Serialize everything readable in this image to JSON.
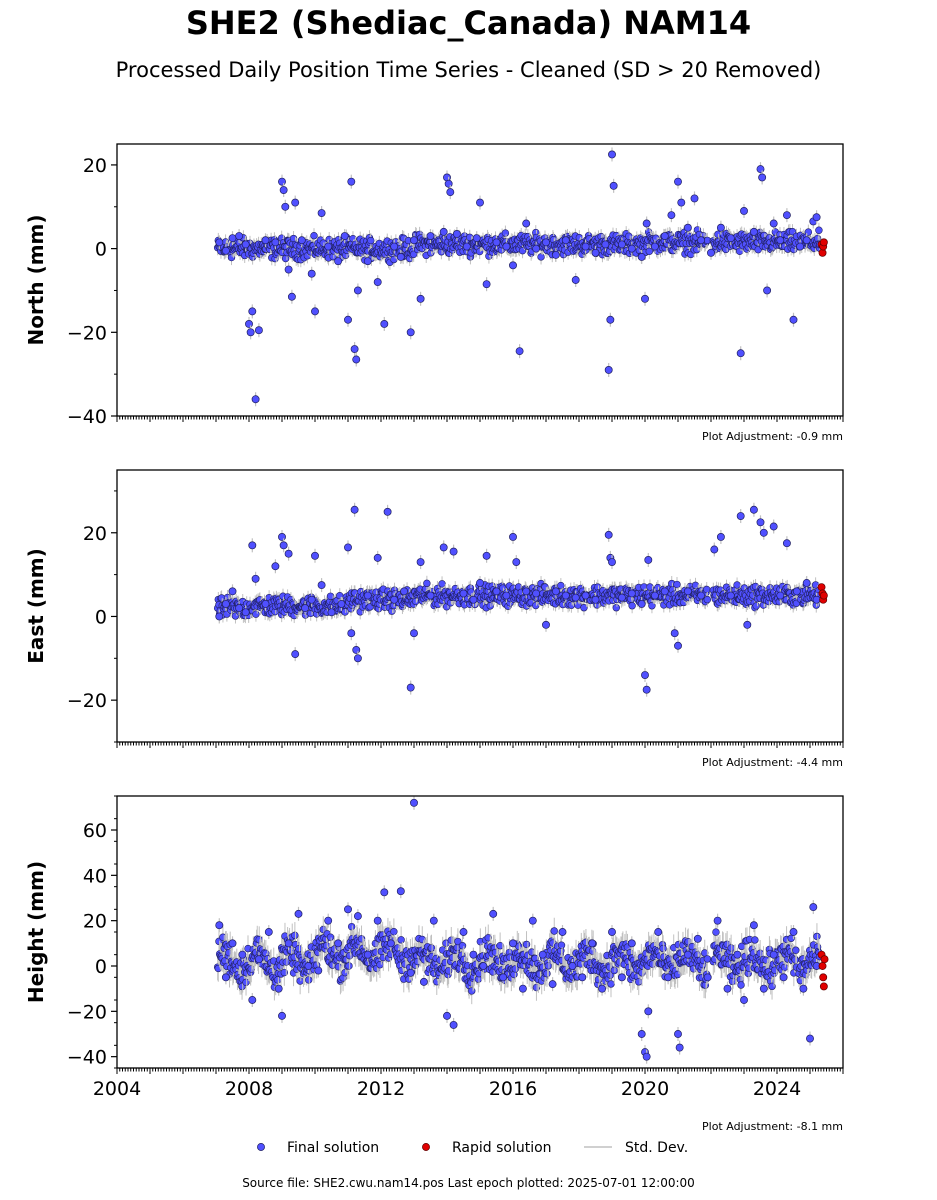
{
  "title": "SHE2 (Shediac_Canada) NAM14",
  "subtitle": "Processed Daily Position Time Series - Cleaned (SD > 20 Removed)",
  "footer": "Source file: SHE2.cwu.nam14.pos  Last epoch plotted: 2025-07-01 12:00:00",
  "legend": {
    "final": "Final solution",
    "rapid": "Rapid solution",
    "std": "Std. Dev."
  },
  "colors": {
    "final": "#5050ff",
    "rapid": "#e00000",
    "std": "#c0c0c0",
    "edge": "#202060"
  },
  "chart_data": [
    {
      "type": "scatter",
      "ylabel": "North (mm)",
      "adjustment": "Plot Adjustment: -0.9 mm",
      "xlim": [
        2004,
        2026
      ],
      "ylim": [
        -40,
        25
      ],
      "yticks": [
        20,
        0,
        -20,
        -40
      ],
      "ytick_labels": [
        "20",
        "0",
        "−20",
        "−40"
      ],
      "series_final": [
        [
          2007.1,
          1.5
        ],
        [
          2007.3,
          -0.5
        ],
        [
          2007.5,
          2.5
        ],
        [
          2007.7,
          3.0
        ],
        [
          2007.9,
          1.0
        ],
        [
          2008.0,
          -18.0
        ],
        [
          2008.05,
          -20.0
        ],
        [
          2008.1,
          -15.0
        ],
        [
          2008.2,
          -36.0
        ],
        [
          2008.3,
          -19.5
        ],
        [
          2008.5,
          2.0
        ],
        [
          2008.8,
          1.5
        ],
        [
          2009.0,
          16.0
        ],
        [
          2009.05,
          14.0
        ],
        [
          2009.1,
          10.0
        ],
        [
          2009.2,
          -5.0
        ],
        [
          2009.3,
          -11.5
        ],
        [
          2009.4,
          11.0
        ],
        [
          2009.6,
          2.0
        ],
        [
          2009.9,
          -6.0
        ],
        [
          2010.0,
          -15.0
        ],
        [
          2010.2,
          8.5
        ],
        [
          2010.4,
          0.5
        ],
        [
          2010.7,
          -3.0
        ],
        [
          2010.9,
          3.0
        ],
        [
          2011.0,
          -17.0
        ],
        [
          2011.1,
          16.0
        ],
        [
          2011.2,
          -24.0
        ],
        [
          2011.25,
          -26.5
        ],
        [
          2011.3,
          -10.0
        ],
        [
          2011.6,
          -3.0
        ],
        [
          2011.9,
          -8.0
        ],
        [
          2012.1,
          -18.0
        ],
        [
          2012.4,
          0.5
        ],
        [
          2012.6,
          -2.0
        ],
        [
          2012.9,
          -20.0
        ],
        [
          2013.0,
          2.0
        ],
        [
          2013.2,
          -12.0
        ],
        [
          2013.5,
          3.0
        ],
        [
          2013.9,
          4.0
        ],
        [
          2014.0,
          17.0
        ],
        [
          2014.05,
          15.5
        ],
        [
          2014.1,
          13.5
        ],
        [
          2014.3,
          3.5
        ],
        [
          2014.6,
          0.5
        ],
        [
          2014.9,
          2.5
        ],
        [
          2015.0,
          11.0
        ],
        [
          2015.2,
          -8.5
        ],
        [
          2015.5,
          1.5
        ],
        [
          2015.8,
          0.5
        ],
        [
          2016.0,
          -4.0
        ],
        [
          2016.2,
          -24.5
        ],
        [
          2016.4,
          6.0
        ],
        [
          2016.7,
          0.0
        ],
        [
          2017.0,
          1.5
        ],
        [
          2017.3,
          -1.5
        ],
        [
          2017.6,
          2.0
        ],
        [
          2017.9,
          -7.5
        ],
        [
          2018.2,
          0.5
        ],
        [
          2018.5,
          -1.0
        ],
        [
          2018.8,
          1.0
        ],
        [
          2018.9,
          -29.0
        ],
        [
          2018.95,
          -17.0
        ],
        [
          2019.0,
          22.5
        ],
        [
          2019.05,
          15.0
        ],
        [
          2019.3,
          1.0
        ],
        [
          2019.6,
          0.0
        ],
        [
          2019.9,
          -2.0
        ],
        [
          2020.0,
          -12.0
        ],
        [
          2020.05,
          6.0
        ],
        [
          2020.3,
          0.5
        ],
        [
          2020.6,
          3.0
        ],
        [
          2020.8,
          8.0
        ],
        [
          2021.0,
          16.0
        ],
        [
          2021.1,
          11.0
        ],
        [
          2021.3,
          5.0
        ],
        [
          2021.5,
          12.0
        ],
        [
          2021.7,
          2.0
        ],
        [
          2022.0,
          -1.0
        ],
        [
          2022.3,
          5.0
        ],
        [
          2022.6,
          2.5
        ],
        [
          2022.9,
          -25.0
        ],
        [
          2023.0,
          9.0
        ],
        [
          2023.3,
          4.0
        ],
        [
          2023.5,
          19.0
        ],
        [
          2023.55,
          17.0
        ],
        [
          2023.7,
          -10.0
        ],
        [
          2023.9,
          6.0
        ],
        [
          2024.1,
          2.0
        ],
        [
          2024.3,
          8.0
        ],
        [
          2024.5,
          -17.0
        ],
        [
          2024.7,
          0.5
        ],
        [
          2024.9,
          2.0
        ],
        [
          2025.1,
          6.5
        ],
        [
          2025.2,
          7.5
        ],
        [
          2025.3,
          1.0
        ]
      ],
      "series_rapid": [
        [
          2025.35,
          1.0
        ],
        [
          2025.38,
          -1.0
        ],
        [
          2025.4,
          0.5
        ],
        [
          2025.42,
          1.5
        ]
      ]
    },
    {
      "type": "scatter",
      "ylabel": "East (mm)",
      "adjustment": "Plot Adjustment: -4.4 mm",
      "xlim": [
        2004,
        2026
      ],
      "ylim": [
        -30,
        35
      ],
      "yticks": [
        20,
        0,
        -20
      ],
      "ytick_labels": [
        "20",
        "0",
        "−20"
      ],
      "series_final": [
        [
          2007.1,
          0.0
        ],
        [
          2007.3,
          3.0
        ],
        [
          2007.5,
          6.0
        ],
        [
          2007.7,
          2.0
        ],
        [
          2007.9,
          1.0
        ],
        [
          2008.1,
          17.0
        ],
        [
          2008.2,
          9.0
        ],
        [
          2008.5,
          3.0
        ],
        [
          2008.8,
          12.0
        ],
        [
          2009.0,
          19.0
        ],
        [
          2009.05,
          17.0
        ],
        [
          2009.2,
          15.0
        ],
        [
          2009.4,
          -9.0
        ],
        [
          2009.7,
          2.0
        ],
        [
          2009.9,
          4.0
        ],
        [
          2010.0,
          14.5
        ],
        [
          2010.2,
          7.5
        ],
        [
          2010.5,
          1.0
        ],
        [
          2010.8,
          3.0
        ],
        [
          2011.0,
          16.5
        ],
        [
          2011.1,
          -4.0
        ],
        [
          2011.2,
          25.5
        ],
        [
          2011.25,
          -8.0
        ],
        [
          2011.3,
          -10.0
        ],
        [
          2011.6,
          5.0
        ],
        [
          2011.9,
          14.0
        ],
        [
          2012.2,
          25.0
        ],
        [
          2012.4,
          4.0
        ],
        [
          2012.7,
          6.0
        ],
        [
          2012.9,
          -17.0
        ],
        [
          2013.0,
          -4.0
        ],
        [
          2013.2,
          13.0
        ],
        [
          2013.5,
          5.0
        ],
        [
          2013.9,
          16.5
        ],
        [
          2014.2,
          15.5
        ],
        [
          2014.5,
          5.5
        ],
        [
          2014.8,
          4.0
        ],
        [
          2015.0,
          8.0
        ],
        [
          2015.2,
          14.5
        ],
        [
          2015.5,
          6.0
        ],
        [
          2015.8,
          5.0
        ],
        [
          2016.0,
          19.0
        ],
        [
          2016.1,
          13.0
        ],
        [
          2016.4,
          6.0
        ],
        [
          2016.7,
          5.5
        ],
        [
          2017.0,
          -2.0
        ],
        [
          2017.3,
          6.0
        ],
        [
          2017.6,
          5.0
        ],
        [
          2017.9,
          4.5
        ],
        [
          2018.2,
          5.0
        ],
        [
          2018.5,
          4.0
        ],
        [
          2018.9,
          19.5
        ],
        [
          2018.95,
          14.0
        ],
        [
          2019.0,
          13.0
        ],
        [
          2019.3,
          4.5
        ],
        [
          2019.6,
          5.5
        ],
        [
          2019.9,
          3.0
        ],
        [
          2020.0,
          -14.0
        ],
        [
          2020.05,
          -17.5
        ],
        [
          2020.1,
          13.5
        ],
        [
          2020.3,
          5.0
        ],
        [
          2020.6,
          6.0
        ],
        [
          2020.9,
          -4.0
        ],
        [
          2021.0,
          -7.0
        ],
        [
          2021.3,
          6.0
        ],
        [
          2021.7,
          5.0
        ],
        [
          2022.1,
          16.0
        ],
        [
          2022.3,
          19.0
        ],
        [
          2022.6,
          5.0
        ],
        [
          2022.9,
          24.0
        ],
        [
          2023.1,
          -2.0
        ],
        [
          2023.3,
          25.5
        ],
        [
          2023.5,
          22.5
        ],
        [
          2023.6,
          20.0
        ],
        [
          2023.9,
          21.5
        ],
        [
          2024.1,
          5.0
        ],
        [
          2024.3,
          17.5
        ],
        [
          2024.6,
          6.0
        ],
        [
          2024.9,
          8.0
        ],
        [
          2025.2,
          4.0
        ]
      ],
      "series_rapid": [
        [
          2025.35,
          7.0
        ],
        [
          2025.38,
          5.5
        ],
        [
          2025.4,
          4.0
        ],
        [
          2025.42,
          5.0
        ]
      ]
    },
    {
      "type": "scatter",
      "ylabel": "Height (mm)",
      "adjustment": "Plot Adjustment: -8.1 mm",
      "xlim": [
        2004,
        2026
      ],
      "ylim": [
        -45,
        75
      ],
      "yticks": [
        60,
        40,
        20,
        0,
        -20,
        -40
      ],
      "ytick_labels": [
        "60",
        "40",
        "20",
        "0",
        "−20",
        "−40"
      ],
      "xticks": [
        2004,
        2008,
        2012,
        2016,
        2020,
        2024
      ],
      "xtick_labels": [
        "2004",
        "2008",
        "2012",
        "2016",
        "2020",
        "2024"
      ],
      "series_final": [
        [
          2007.1,
          18.0
        ],
        [
          2007.3,
          -5.0
        ],
        [
          2007.5,
          10.0
        ],
        [
          2007.8,
          5.0
        ],
        [
          2008.1,
          -15.0
        ],
        [
          2008.3,
          3.0
        ],
        [
          2008.6,
          15.0
        ],
        [
          2008.9,
          -10.0
        ],
        [
          2009.0,
          -22.0
        ],
        [
          2009.2,
          10.0
        ],
        [
          2009.5,
          23.0
        ],
        [
          2009.8,
          0.0
        ],
        [
          2010.1,
          -2.0
        ],
        [
          2010.4,
          20.0
        ],
        [
          2010.7,
          10.0
        ],
        [
          2011.0,
          25.0
        ],
        [
          2011.3,
          22.0
        ],
        [
          2011.6,
          5.0
        ],
        [
          2011.9,
          20.0
        ],
        [
          2012.1,
          32.5
        ],
        [
          2012.3,
          10.0
        ],
        [
          2012.6,
          33.0
        ],
        [
          2012.9,
          -3.0
        ],
        [
          2013.0,
          72.0
        ],
        [
          2013.3,
          -7.0
        ],
        [
          2013.6,
          20.0
        ],
        [
          2014.0,
          -22.0
        ],
        [
          2014.2,
          -26.0
        ],
        [
          2014.5,
          15.0
        ],
        [
          2014.8,
          5.0
        ],
        [
          2015.1,
          0.0
        ],
        [
          2015.4,
          23.0
        ],
        [
          2015.7,
          -5.0
        ],
        [
          2016.0,
          10.0
        ],
        [
          2016.3,
          -10.0
        ],
        [
          2016.6,
          20.0
        ],
        [
          2016.9,
          5.0
        ],
        [
          2017.2,
          -8.0
        ],
        [
          2017.5,
          15.0
        ],
        [
          2017.8,
          0.0
        ],
        [
          2018.1,
          -5.0
        ],
        [
          2018.4,
          10.0
        ],
        [
          2018.7,
          -10.0
        ],
        [
          2019.0,
          15.0
        ],
        [
          2019.3,
          -5.0
        ],
        [
          2019.6,
          10.0
        ],
        [
          2019.9,
          -30.0
        ],
        [
          2020.0,
          -38.0
        ],
        [
          2020.05,
          -40.0
        ],
        [
          2020.1,
          -20.0
        ],
        [
          2020.4,
          15.0
        ],
        [
          2020.7,
          -5.0
        ],
        [
          2021.0,
          -30.0
        ],
        [
          2021.05,
          -36.0
        ],
        [
          2021.3,
          5.0
        ],
        [
          2021.6,
          12.0
        ],
        [
          2021.9,
          -5.0
        ],
        [
          2022.2,
          20.0
        ],
        [
          2022.5,
          -10.0
        ],
        [
          2022.8,
          5.0
        ],
        [
          2023.0,
          -15.0
        ],
        [
          2023.3,
          18.0
        ],
        [
          2023.6,
          -10.0
        ],
        [
          2023.9,
          5.0
        ],
        [
          2024.2,
          -5.0
        ],
        [
          2024.5,
          15.0
        ],
        [
          2024.8,
          -10.0
        ],
        [
          2025.0,
          -32.0
        ],
        [
          2025.1,
          26.0
        ],
        [
          2025.2,
          0.0
        ]
      ],
      "series_rapid": [
        [
          2025.35,
          5.0
        ],
        [
          2025.38,
          0.0
        ],
        [
          2025.4,
          -5.0
        ],
        [
          2025.42,
          -9.0
        ],
        [
          2025.44,
          3.0
        ]
      ]
    }
  ]
}
